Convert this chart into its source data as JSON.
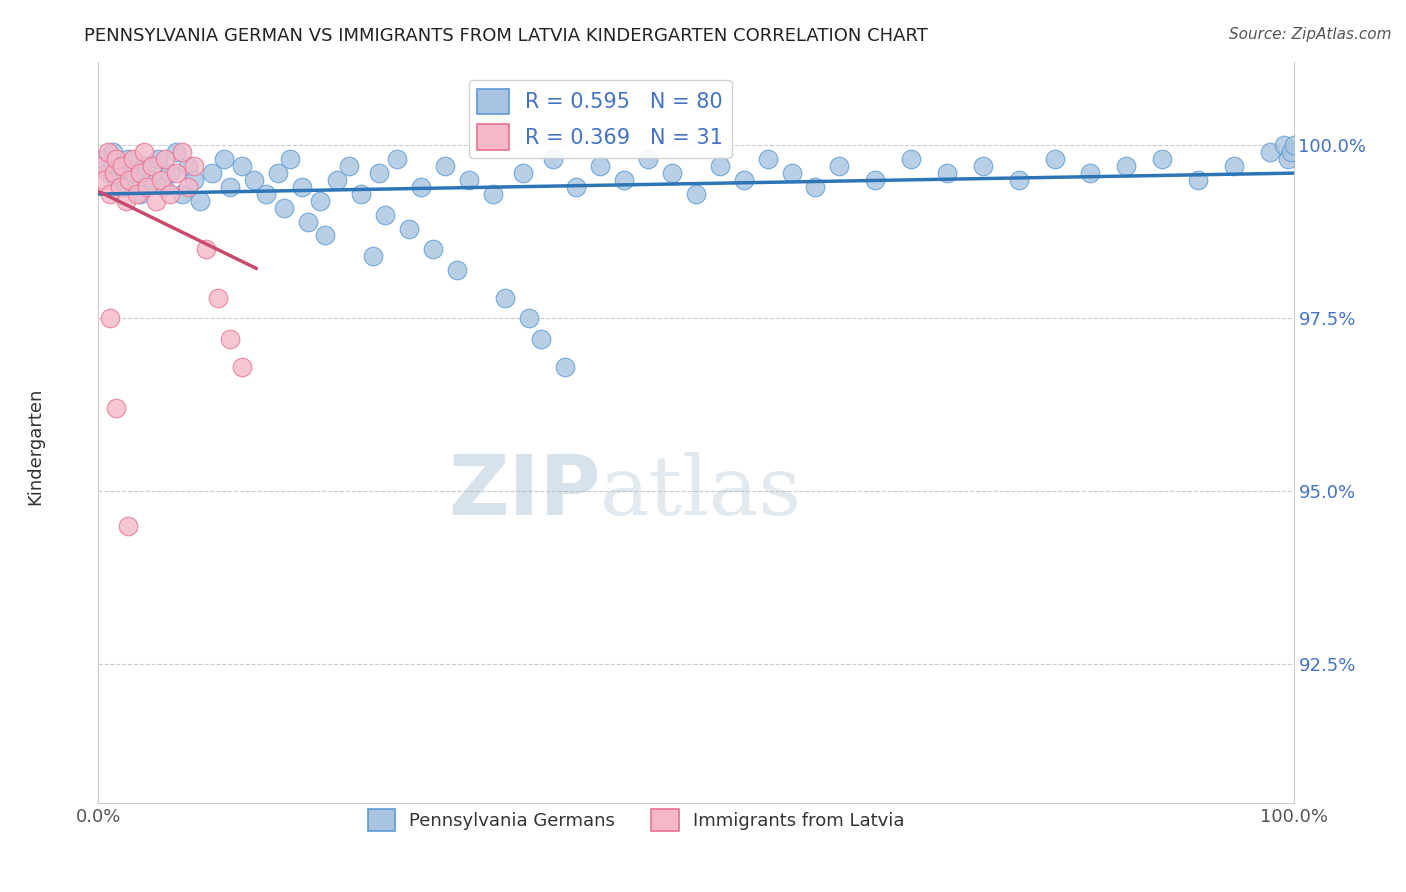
{
  "title": "PENNSYLVANIA GERMAN VS IMMIGRANTS FROM LATVIA KINDERGARTEN CORRELATION CHART",
  "source_text": "Source: ZipAtlas.com",
  "ylabel": "Kindergarten",
  "xlim": [
    0.0,
    100.0
  ],
  "ylim": [
    90.5,
    101.2
  ],
  "yticks": [
    92.5,
    95.0,
    97.5,
    100.0
  ],
  "ytick_labels": [
    "92.5%",
    "95.0%",
    "97.5%",
    "100.0%"
  ],
  "xticks": [
    0.0,
    25.0,
    50.0,
    75.0,
    100.0
  ],
  "xtick_labels": [
    "0.0%",
    "",
    "",
    "",
    "100.0%"
  ],
  "blue_R": 0.595,
  "blue_N": 80,
  "pink_R": 0.369,
  "pink_N": 31,
  "blue_color": "#a8c4e0",
  "blue_edge_color": "#5b9bd5",
  "pink_color": "#f4b8c8",
  "pink_edge_color": "#e87090",
  "blue_trend_color": "#2e75b6",
  "pink_trend_color": "#c84b6e",
  "blue_x": [
    0.4,
    0.8,
    1.2,
    1.5,
    1.8,
    2.1,
    2.5,
    3.0,
    3.5,
    4.0,
    4.5,
    5.0,
    5.5,
    6.0,
    6.5,
    7.0,
    7.5,
    8.0,
    8.5,
    9.5,
    10.5,
    11.0,
    12.0,
    13.0,
    14.0,
    15.0,
    16.0,
    17.0,
    18.5,
    20.0,
    21.0,
    22.0,
    23.5,
    25.0,
    27.0,
    29.0,
    31.0,
    33.0,
    35.5,
    38.0,
    40.0,
    42.0,
    44.0,
    46.0,
    48.0,
    50.0,
    52.0,
    54.0,
    56.0,
    58.0,
    60.0,
    62.0,
    65.0,
    68.0,
    71.0,
    74.0,
    77.0,
    80.0,
    83.0,
    86.0,
    89.0,
    92.0,
    95.0,
    98.0,
    99.2,
    99.5,
    99.8,
    100.0,
    24.0,
    26.0,
    28.0,
    30.0,
    34.0,
    36.0,
    37.0,
    39.0,
    15.5,
    17.5,
    19.0,
    23.0
  ],
  "blue_y": [
    99.8,
    99.6,
    99.9,
    99.5,
    99.7,
    99.4,
    99.8,
    99.6,
    99.3,
    99.7,
    99.5,
    99.8,
    99.4,
    99.6,
    99.9,
    99.3,
    99.7,
    99.5,
    99.2,
    99.6,
    99.8,
    99.4,
    99.7,
    99.5,
    99.3,
    99.6,
    99.8,
    99.4,
    99.2,
    99.5,
    99.7,
    99.3,
    99.6,
    99.8,
    99.4,
    99.7,
    99.5,
    99.3,
    99.6,
    99.8,
    99.4,
    99.7,
    99.5,
    99.8,
    99.6,
    99.3,
    99.7,
    99.5,
    99.8,
    99.6,
    99.4,
    99.7,
    99.5,
    99.8,
    99.6,
    99.7,
    99.5,
    99.8,
    99.6,
    99.7,
    99.8,
    99.5,
    99.7,
    99.9,
    100.0,
    99.8,
    99.9,
    100.0,
    99.0,
    98.8,
    98.5,
    98.2,
    97.8,
    97.5,
    97.2,
    96.8,
    99.1,
    98.9,
    98.7,
    98.4
  ],
  "pink_x": [
    0.3,
    0.5,
    0.8,
    1.0,
    1.3,
    1.5,
    1.8,
    2.0,
    2.3,
    2.6,
    2.9,
    3.2,
    3.5,
    3.8,
    4.1,
    4.5,
    4.8,
    5.2,
    5.6,
    6.0,
    6.5,
    7.0,
    7.5,
    8.0,
    9.0,
    10.0,
    11.0,
    12.0,
    1.0,
    1.5,
    2.5
  ],
  "pink_y": [
    99.7,
    99.5,
    99.9,
    99.3,
    99.6,
    99.8,
    99.4,
    99.7,
    99.2,
    99.5,
    99.8,
    99.3,
    99.6,
    99.9,
    99.4,
    99.7,
    99.2,
    99.5,
    99.8,
    99.3,
    99.6,
    99.9,
    99.4,
    99.7,
    98.5,
    97.8,
    97.2,
    96.8,
    97.5,
    96.2,
    94.5
  ]
}
